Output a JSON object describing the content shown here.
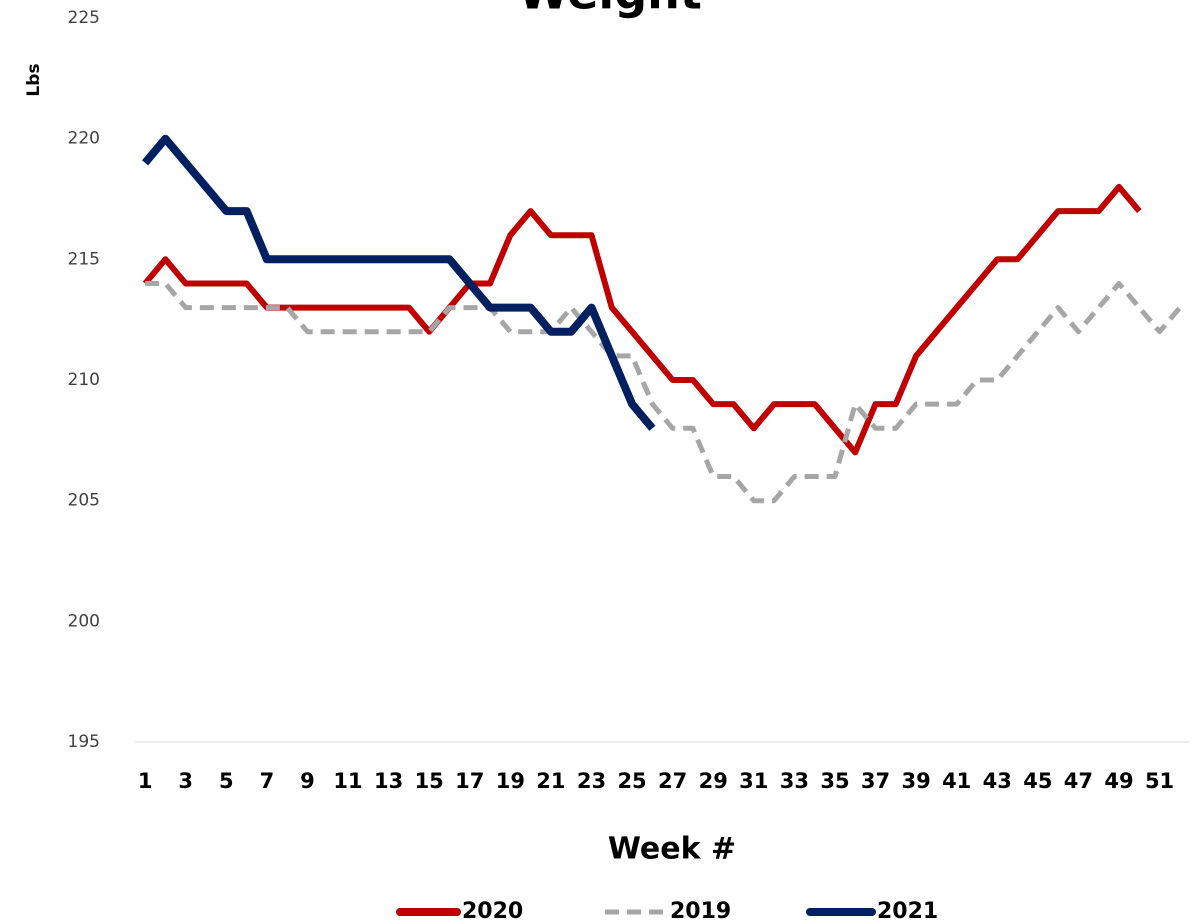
{
  "chart_data": {
    "type": "line",
    "title": "Weight",
    "y_label": "Lbs",
    "x_label": "Week #",
    "categories": [
      1,
      null,
      3,
      null,
      5,
      null,
      7,
      null,
      9,
      null,
      11,
      null,
      13,
      null,
      15,
      null,
      17,
      null,
      19,
      null,
      21,
      null,
      23,
      null,
      25,
      null,
      27,
      null,
      29,
      null,
      31,
      null,
      33,
      null,
      35,
      null,
      37,
      null,
      39,
      null,
      41,
      null,
      43,
      null,
      45,
      null,
      47,
      null,
      49,
      null,
      51,
      null
    ],
    "series": [
      {
        "name": "2020",
        "color": "#c00000",
        "style": "solid",
        "values": [
          214,
          215,
          214,
          214,
          214,
          214,
          213,
          213,
          213,
          213,
          213,
          213,
          213,
          213,
          212,
          213,
          214,
          214,
          216,
          217,
          216,
          216,
          216,
          213,
          212,
          211,
          210,
          210,
          209,
          209,
          208,
          209,
          209,
          209,
          208,
          207,
          209,
          209,
          211,
          212,
          213,
          214,
          215,
          215,
          216,
          217,
          217,
          217,
          218,
          217,
          null,
          null
        ]
      },
      {
        "name": "2019",
        "color": "#a6a6a6",
        "style": "dashed",
        "values": [
          214,
          214,
          213,
          213,
          213,
          213,
          213,
          213,
          212,
          212,
          212,
          212,
          212,
          212,
          212,
          213,
          213,
          213,
          212,
          212,
          212,
          213,
          212,
          211,
          211,
          209,
          208,
          208,
          206,
          206,
          205,
          205,
          206,
          206,
          206,
          209,
          208,
          208,
          209,
          209,
          209,
          210,
          210,
          211,
          212,
          213,
          212,
          213,
          214,
          213,
          212,
          213
        ]
      },
      {
        "name": "2021",
        "color": "#002060",
        "style": "solid",
        "values": [
          219,
          220,
          219,
          218,
          217,
          217,
          215,
          215,
          215,
          215,
          215,
          215,
          215,
          215,
          215,
          215,
          214,
          213,
          213,
          213,
          212,
          212,
          213,
          211,
          209,
          208,
          null,
          null,
          null,
          null,
          null,
          null,
          null,
          null,
          null,
          null,
          null,
          null,
          null,
          null,
          null,
          null,
          null,
          null,
          null,
          null,
          null,
          null,
          null,
          null,
          null,
          null
        ]
      }
    ],
    "ylim": [
      195,
      225
    ],
    "yticks": [
      195,
      200,
      205,
      210,
      215,
      220,
      225
    ],
    "legend": "bottom"
  }
}
